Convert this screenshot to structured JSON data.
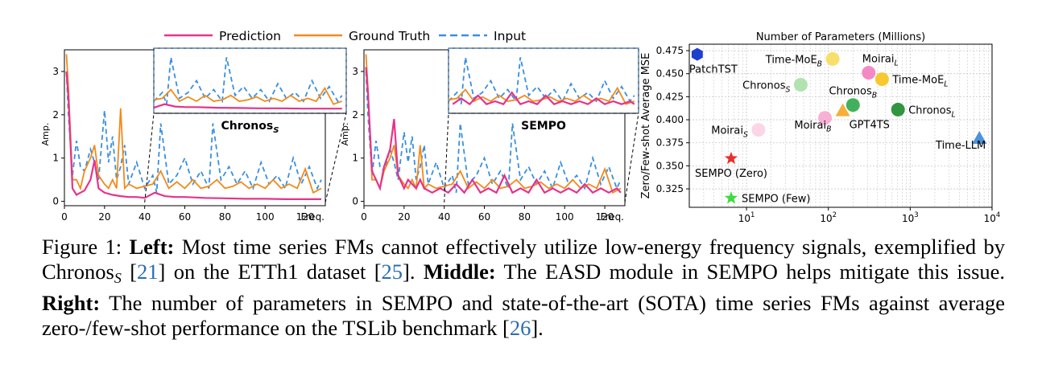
{
  "legend": {
    "items": [
      {
        "label": "Prediction",
        "color": "#e6338a",
        "dash": false
      },
      {
        "label": "Ground Truth",
        "color": "#f28a1a",
        "dash": false
      },
      {
        "label": "Input",
        "color": "#3a8fe0",
        "dash": true
      }
    ]
  },
  "chart_data": [
    {
      "type": "line",
      "panel": "left",
      "inset_label": "Chronos",
      "inset_label_sub": "S",
      "ylabel": "Amp.",
      "xlabel": "Freq.",
      "x_ticks": [
        0,
        20,
        40,
        60,
        80,
        100,
        120
      ],
      "y_ticks": [
        0,
        1,
        2,
        3
      ],
      "xlim": [
        0,
        130
      ],
      "ylim": [
        -0.1,
        3.5
      ],
      "zoom_range": [
        40,
        130
      ],
      "series": [
        {
          "name": "Prediction",
          "x": [
            1,
            2,
            4,
            6,
            8,
            10,
            13,
            15,
            17,
            20,
            24,
            28,
            32,
            36,
            40,
            45,
            50,
            55,
            60,
            70,
            80,
            90,
            100,
            110,
            120,
            128
          ],
          "y": [
            3.0,
            2.4,
            0.3,
            0.15,
            0.2,
            0.25,
            0.5,
            0.95,
            0.3,
            0.2,
            0.15,
            0.12,
            0.1,
            0.1,
            0.08,
            0.2,
            0.12,
            0.1,
            0.1,
            0.08,
            0.07,
            0.06,
            0.06,
            0.05,
            0.05,
            0.05
          ]
        },
        {
          "name": "Ground Truth",
          "x": [
            1,
            2,
            4,
            6,
            8,
            10,
            13,
            15,
            17,
            20,
            22,
            24,
            26,
            28,
            30,
            32,
            36,
            40,
            44,
            48,
            52,
            56,
            60,
            64,
            68,
            72,
            76,
            80,
            84,
            88,
            92,
            96,
            100,
            104,
            108,
            112,
            116,
            120,
            124,
            128
          ],
          "y": [
            3.4,
            2.6,
            0.5,
            0.5,
            0.3,
            0.7,
            1.0,
            1.3,
            0.6,
            0.4,
            0.3,
            0.5,
            0.3,
            2.15,
            0.3,
            0.4,
            0.3,
            0.35,
            0.4,
            0.7,
            0.3,
            0.45,
            0.3,
            0.5,
            0.3,
            0.35,
            0.5,
            0.3,
            0.35,
            0.45,
            0.3,
            0.4,
            0.3,
            0.5,
            0.3,
            0.4,
            0.3,
            0.75,
            0.2,
            0.3
          ]
        },
        {
          "name": "Input",
          "x": [
            1,
            2,
            4,
            6,
            8,
            10,
            13,
            15,
            17,
            20,
            22,
            24,
            26,
            28,
            30,
            32,
            36,
            40,
            44,
            46,
            48,
            52,
            56,
            60,
            64,
            68,
            72,
            74,
            78,
            82,
            86,
            90,
            94,
            98,
            102,
            106,
            110,
            114,
            118,
            122,
            126,
            128
          ],
          "y": [
            3.0,
            2.0,
            0.6,
            1.4,
            0.8,
            0.7,
            1.2,
            0.9,
            0.5,
            2.1,
            0.9,
            1.5,
            0.5,
            0.8,
            1.3,
            0.4,
            0.9,
            0.3,
            0.6,
            0.2,
            1.8,
            0.4,
            0.6,
            1.0,
            0.4,
            0.7,
            0.3,
            1.8,
            0.5,
            0.8,
            0.4,
            0.7,
            0.3,
            0.9,
            0.4,
            0.6,
            0.3,
            1.0,
            0.4,
            0.8,
            0.3,
            0.5
          ]
        }
      ]
    },
    {
      "type": "line",
      "panel": "middle",
      "inset_label": "SEMPO",
      "ylabel": "Amp.",
      "xlabel": "Freq.",
      "x_ticks": [
        0,
        20,
        40,
        60,
        80,
        100,
        120
      ],
      "y_ticks": [
        0,
        1,
        2,
        3
      ],
      "xlim": [
        0,
        130
      ],
      "ylim": [
        -0.1,
        3.5
      ],
      "zoom_range": [
        40,
        130
      ],
      "series": [
        {
          "name": "Prediction",
          "x": [
            1,
            2,
            4,
            6,
            8,
            10,
            13,
            15,
            17,
            20,
            22,
            24,
            26,
            28,
            30,
            34,
            38,
            42,
            46,
            50,
            54,
            58,
            62,
            66,
            70,
            74,
            78,
            82,
            86,
            90,
            94,
            98,
            102,
            106,
            110,
            114,
            118,
            122,
            126,
            128
          ],
          "y": [
            3.1,
            2.5,
            0.7,
            0.5,
            0.3,
            0.8,
            1.2,
            1.9,
            0.6,
            0.3,
            0.5,
            0.4,
            0.3,
            0.5,
            0.3,
            0.2,
            0.3,
            0.2,
            0.4,
            0.2,
            0.5,
            0.2,
            0.3,
            0.2,
            0.6,
            0.2,
            0.3,
            0.2,
            0.5,
            0.2,
            0.3,
            0.2,
            0.3,
            0.2,
            0.4,
            0.2,
            0.3,
            0.2,
            0.3,
            0.2
          ]
        },
        {
          "name": "Ground Truth",
          "x": [
            1,
            2,
            4,
            6,
            8,
            10,
            13,
            15,
            17,
            20,
            22,
            24,
            26,
            28,
            30,
            32,
            36,
            40,
            44,
            48,
            52,
            56,
            60,
            64,
            68,
            72,
            76,
            80,
            84,
            88,
            92,
            96,
            100,
            104,
            108,
            112,
            116,
            120,
            124,
            128
          ],
          "y": [
            3.4,
            2.6,
            0.5,
            0.5,
            0.3,
            0.7,
            1.0,
            1.3,
            0.6,
            0.4,
            0.3,
            0.5,
            0.3,
            1.3,
            0.3,
            0.4,
            0.3,
            0.35,
            0.4,
            0.7,
            0.3,
            0.45,
            0.3,
            0.5,
            0.3,
            0.35,
            0.5,
            0.3,
            0.35,
            0.45,
            0.3,
            0.4,
            0.3,
            0.5,
            0.3,
            0.4,
            0.3,
            0.75,
            0.2,
            0.3
          ]
        },
        {
          "name": "Input",
          "x": [
            1,
            2,
            4,
            6,
            8,
            10,
            13,
            15,
            17,
            20,
            22,
            24,
            26,
            28,
            30,
            32,
            36,
            40,
            44,
            46,
            48,
            52,
            56,
            60,
            64,
            68,
            72,
            74,
            78,
            82,
            86,
            90,
            94,
            98,
            102,
            106,
            110,
            114,
            118,
            122,
            126,
            128
          ],
          "y": [
            3.0,
            2.0,
            0.6,
            1.4,
            0.8,
            0.7,
            1.2,
            0.9,
            0.5,
            1.6,
            0.9,
            1.5,
            0.5,
            0.8,
            1.3,
            0.4,
            0.9,
            0.3,
            0.6,
            0.2,
            1.8,
            0.4,
            0.6,
            1.0,
            0.4,
            0.7,
            0.3,
            1.8,
            0.5,
            0.8,
            0.4,
            0.7,
            0.3,
            0.9,
            0.4,
            0.6,
            0.3,
            1.0,
            0.4,
            0.8,
            0.3,
            0.5
          ]
        }
      ]
    },
    {
      "type": "scatter",
      "panel": "right",
      "title": "Number of Parameters (Millions)",
      "ylabel": "Zero/Few-shot Average MSE",
      "x_scale": "log",
      "xlim": [
        2,
        10000
      ],
      "ylim": [
        0.305,
        0.482
      ],
      "x_ticks": [
        {
          "value": 10,
          "base": "10",
          "exp": "1"
        },
        {
          "value": 100,
          "base": "10",
          "exp": "2"
        },
        {
          "value": 1000,
          "base": "10",
          "exp": "3"
        },
        {
          "value": 10000,
          "base": "10",
          "exp": "4"
        }
      ],
      "y_ticks": [
        "0.325",
        "0.350",
        "0.375",
        "0.400",
        "0.425",
        "0.450",
        "0.475"
      ],
      "grid": true,
      "points": [
        {
          "name": "PatchTST",
          "sub": "",
          "x": 2.5,
          "y": 0.471,
          "marker": "hexagon",
          "color": "#1f3fd1",
          "label_pos": "below"
        },
        {
          "name": "Time-MoE",
          "sub": "B",
          "x": 113,
          "y": 0.466,
          "marker": "circle",
          "color": "#f7dc5a",
          "label_pos": "left"
        },
        {
          "name": "Moirai",
          "sub": "L",
          "x": 311,
          "y": 0.451,
          "marker": "circle",
          "color": "#f27dbd",
          "label_pos": "above-right"
        },
        {
          "name": "Time-MoE",
          "sub": "L",
          "x": 453,
          "y": 0.444,
          "marker": "circle",
          "color": "#f7c21a",
          "label_pos": "right"
        },
        {
          "name": "Chronos",
          "sub": "S",
          "x": 46,
          "y": 0.438,
          "marker": "circle",
          "color": "#a8e0a8",
          "label_pos": "left"
        },
        {
          "name": "Chronos",
          "sub": "B",
          "x": 200,
          "y": 0.416,
          "marker": "circle",
          "color": "#2ea84a",
          "label_pos": "above"
        },
        {
          "name": "Chronos",
          "sub": "L",
          "x": 710,
          "y": 0.411,
          "marker": "circle",
          "color": "#1b8a2e",
          "label_pos": "right"
        },
        {
          "name": "GPT4TS",
          "sub": "",
          "x": 150,
          "y": 0.41,
          "marker": "triangle",
          "color": "#f5a623",
          "label_pos": "below-right"
        },
        {
          "name": "Moirai",
          "sub": "B",
          "x": 91,
          "y": 0.402,
          "marker": "circle",
          "color": "#f7a8cf",
          "label_pos": "below-left"
        },
        {
          "name": "Moirai",
          "sub": "S",
          "x": 14,
          "y": 0.389,
          "marker": "circle",
          "color": "#fbd1e4",
          "label_pos": "left"
        },
        {
          "name": "Time-LLM",
          "sub": "",
          "x": 7000,
          "y": 0.38,
          "marker": "triangle",
          "color": "#3a86d6",
          "label_pos": "below-left"
        },
        {
          "name": "SEMPO (Zero)",
          "sub": "",
          "x": 6.5,
          "y": 0.358,
          "marker": "star",
          "color": "#e8302a",
          "label_pos": "below"
        },
        {
          "name": "SEMPO (Few)",
          "sub": "",
          "x": 6.5,
          "y": 0.315,
          "marker": "star",
          "color": "#3cdc3c",
          "label_pos": "right"
        }
      ]
    }
  ],
  "caption": {
    "prefix": "Figure 1: ",
    "left_head": "Left:",
    "left_text_1": " Most time series FMs cannot effectively utilize low-energy frequency signals, exemplified by Chronos",
    "left_sub": "S",
    "left_ref_1": "21",
    "left_text_2": " on the ETTh1 dataset ",
    "left_ref_2": "25",
    "middle_head": "Middle:",
    "middle_text": " The EASD module in SEMPO helps mitigate this issue. ",
    "right_head": "Right:",
    "right_text": " The number of parameters in SEMPO and state-of-the-art (SOTA) time series FMs against average zero-/few-shot performance on the TSLib benchmark ",
    "right_ref": "26"
  }
}
